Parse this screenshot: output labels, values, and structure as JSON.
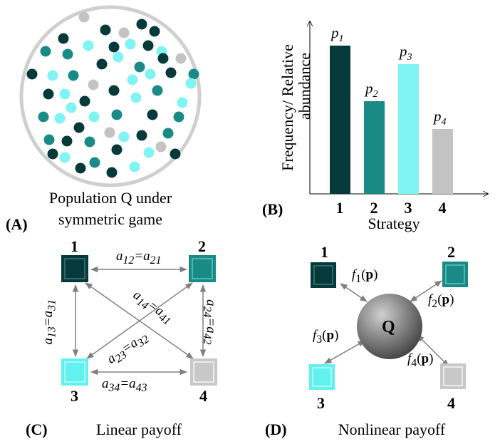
{
  "panels": {
    "A": {
      "label": "(A)",
      "caption_line1": "Population Q under",
      "caption_line2": "symmetric game"
    },
    "B": {
      "label": "(B)",
      "ylabel_line1": "Frequency/ Relative",
      "ylabel_line2": "abundance",
      "xlabel": "Strategy",
      "bar_labels": [
        "p1",
        "p2",
        "p3",
        "p4"
      ]
    },
    "C": {
      "label": "(C)",
      "caption": "Linear payoff",
      "nodes": [
        "1",
        "2",
        "3",
        "4"
      ],
      "edges": [
        "a12=a21",
        "a13=a31",
        "a14=a41",
        "a23=a32",
        "a24=a42",
        "a34=a43"
      ]
    },
    "D": {
      "label": "(D)",
      "caption": "Nonlinear payoff",
      "center": "Q",
      "nodes": [
        "1",
        "2",
        "3",
        "4"
      ],
      "payoffs": [
        "f1(p)",
        "f2(p)",
        "f3(p)",
        "f4(p)"
      ]
    }
  },
  "colors": {
    "strategy1": "#06393a",
    "strategy2": "#1a8a86",
    "strategy3": "#7ff4f2",
    "strategy4": "#c3c3c3",
    "arrow": "#808080"
  },
  "chart_data": {
    "type": "bar",
    "categories": [
      "1",
      "2",
      "3",
      "4"
    ],
    "values": [
      0.8,
      0.5,
      0.7,
      0.35
    ],
    "xlabel": "Strategy",
    "ylabel": "Frequency/ Relative abundance",
    "data_labels": [
      "p1",
      "p2",
      "p3",
      "p4"
    ],
    "ylim": [
      0,
      1
    ],
    "grid": false
  }
}
